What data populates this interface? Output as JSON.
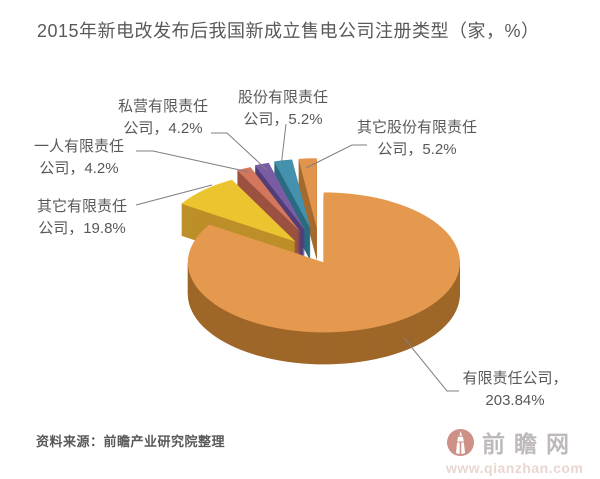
{
  "chart_data": {
    "type": "pie",
    "style": "3d-exploded",
    "title": "2015年新电改发布后我国新成立售电公司注册类型（家，%）",
    "start_angle_deg": 0,
    "direction": "clockwise",
    "legend_position": "none",
    "label_color": "#595959",
    "leader_line_color": "#7f7f7f",
    "slices": [
      {
        "name": "有限责任公司",
        "value": 203.84,
        "display": "203.84%",
        "label_line1": "有限责任公司，",
        "label_line2": "203.84%",
        "color": "#E5994F",
        "side_color": "#9E6728"
      },
      {
        "name": "其它有限责任公司",
        "value": 19.8,
        "display": "19.8%",
        "label_line1": "其它有限责任",
        "label_line2": "公司，19.8%",
        "color": "#EBC52F",
        "side_color": "#BD8F28"
      },
      {
        "name": "一人有限责任公司",
        "value": 4.2,
        "display": "4.2%",
        "label_line1": "一人有限责任",
        "label_line2": "公司，4.2%",
        "color": "#D4765C",
        "side_color": "#9C5240"
      },
      {
        "name": "私营有限责任公司",
        "value": 4.2,
        "display": "4.2%",
        "label_line1": "私营有限责任",
        "label_line2": "公司，4.2%",
        "color": "#7A5CA4",
        "side_color": "#523E76"
      },
      {
        "name": "股份有限责任公司",
        "value": 5.2,
        "display": "5.2%",
        "label_line1": "股份有限责任",
        "label_line2": "公司，5.2%",
        "color": "#4491AD",
        "side_color": "#2B6A80"
      },
      {
        "name": "其它股份有限责任公司",
        "value": 5.2,
        "display": "5.2%",
        "label_line1": "其它股份有限责任",
        "label_line2": "公司，5.2%",
        "color": "#E2944C",
        "side_color": "#A56B2E"
      }
    ]
  },
  "footer": {
    "source_note": "资料来源：前瞻产业研究院整理"
  },
  "watermark": {
    "site_name": "前瞻网",
    "site_url": "www.qianzhan.com"
  }
}
